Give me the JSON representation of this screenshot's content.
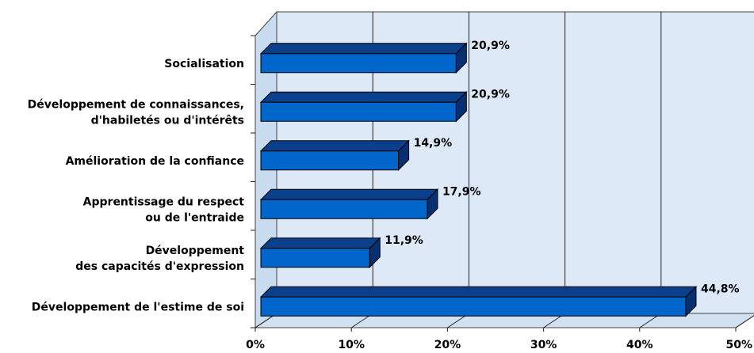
{
  "chart_data": {
    "type": "bar",
    "orientation": "horizontal",
    "style": "3d",
    "categories": [
      [
        "Socialisation"
      ],
      [
        "Développement de connaissances,",
        "d'habiletés ou d'intérêts"
      ],
      [
        "Amélioration de la confiance"
      ],
      [
        "Apprentissage du respect",
        "ou de l'entraide"
      ],
      [
        "Développement",
        "des capacités d'expression"
      ],
      [
        "Développement de l'estime de soi"
      ]
    ],
    "values": [
      20.9,
      20.9,
      14.9,
      17.9,
      11.9,
      44.8
    ],
    "value_labels": [
      "20,9%",
      "20,9%",
      "14,9%",
      "17,9%",
      "11,9%",
      "44,8%"
    ],
    "xlim": [
      0,
      50
    ],
    "ticks": [
      0,
      10,
      20,
      30,
      40,
      50
    ],
    "tick_labels": [
      "0%",
      "10%",
      "20%",
      "30%",
      "40%",
      "50%"
    ],
    "title": "",
    "xlabel": "",
    "ylabel": "",
    "grid": true,
    "colors": {
      "bar_front": "#0066cc",
      "bar_top": "#0a3f8c",
      "bar_side": "#063070",
      "wall": "#dde9f6",
      "floor": "#d2e1f2",
      "grid": "#222222"
    }
  }
}
